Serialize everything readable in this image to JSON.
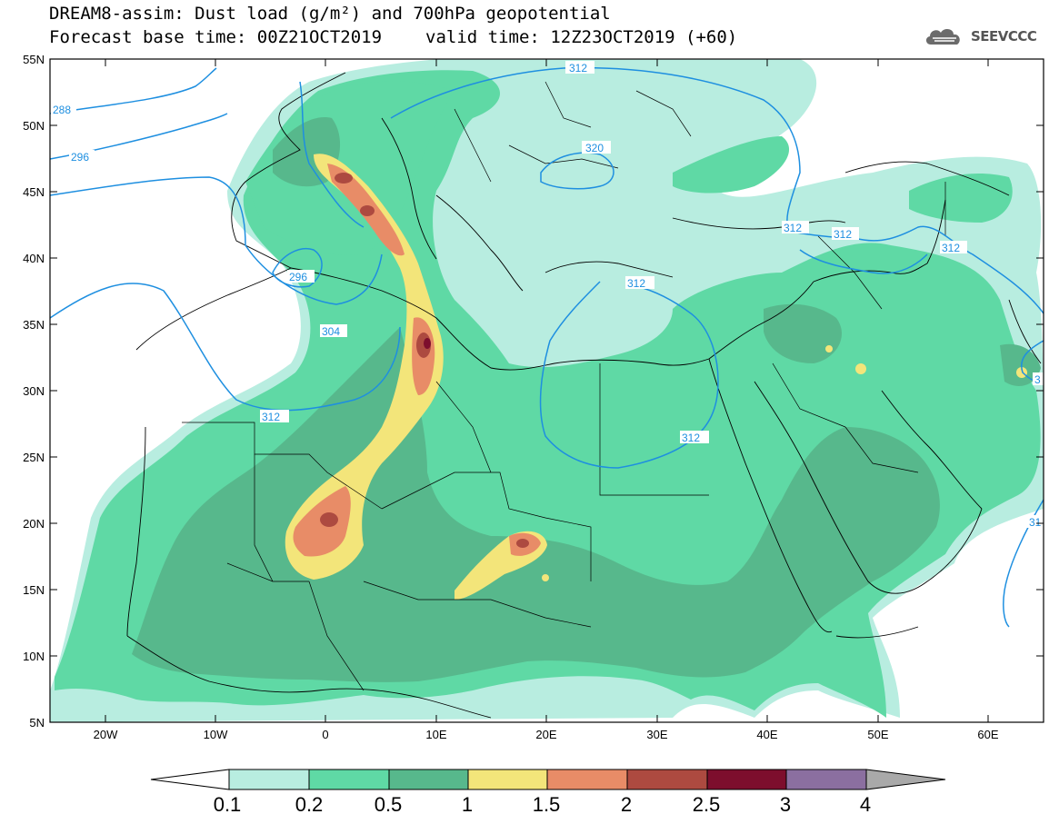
{
  "title": {
    "line1": "DREAM8-assim: Dust load (g/m²) and 700hPa geopotential",
    "base_time": "Forecast base time: 00Z21OCT2019",
    "valid_time": "valid time: 12Z23OCT2019 (+60)"
  },
  "logo": {
    "text": "SEEVCCC",
    "icon": "cloud-icon"
  },
  "axes": {
    "lat_labels": [
      "55N",
      "50N",
      "45N",
      "40N",
      "35N",
      "30N",
      "25N",
      "20N",
      "15N",
      "10N",
      "5N"
    ],
    "lon_labels": [
      "20W",
      "10W",
      "0",
      "10E",
      "20E",
      "30E",
      "40E",
      "50E",
      "60E"
    ],
    "lat_range": [
      5,
      55
    ],
    "lon_range": [
      -25,
      65
    ]
  },
  "contours": {
    "labels": [
      "312",
      "288",
      "296",
      "320",
      "312",
      "312",
      "312",
      "296",
      "304",
      "312",
      "312",
      "31",
      "3"
    ]
  },
  "colorbar": {
    "labels": [
      "0.1",
      "0.2",
      "0.5",
      "1",
      "1.5",
      "2",
      "2.5",
      "3",
      "4"
    ],
    "colors": [
      "#ffffff",
      "#b8ede0",
      "#5fd9a5",
      "#57b88c",
      "#f3e57a",
      "#e88c67",
      "#ad4a40",
      "#7d0e2d",
      "#8b6fa0",
      "#a9a9a9"
    ]
  }
}
